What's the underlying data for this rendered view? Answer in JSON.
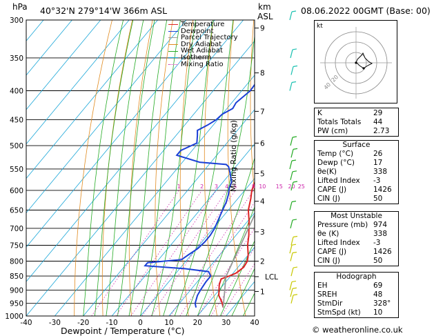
{
  "header": {
    "hpa_label": "hPa",
    "location": "40°32'N  279°14'W  366m  ASL",
    "km_label": "km",
    "asl_label": "ASL",
    "datetime": "08.06.2022  00GMT  (Base: 00)"
  },
  "footer": {
    "copyright": "© weatheronline.co.uk"
  },
  "mixing_ratio_axis_label": "Mixing Ratio  (g/kg)",
  "legend": [
    {
      "label": "Temperature",
      "color": "#dd2222"
    },
    {
      "label": "Dewpoint",
      "color": "#1a3fd6"
    },
    {
      "label": "Parcel Trajectory",
      "color": "#999999"
    },
    {
      "label": "Dry Adiabat",
      "color": "#e08a1e"
    },
    {
      "label": "Wet Adiabat",
      "color": "#22aa22"
    },
    {
      "label": "Isotherm",
      "color": "#19a6d8"
    },
    {
      "label": "Mixing Ratio",
      "color": "#cc22aa"
    }
  ],
  "indices": [
    {
      "label": "K",
      "value": "29"
    },
    {
      "label": "Totals Totals",
      "value": "44"
    },
    {
      "label": "PW (cm)",
      "value": "2.73"
    }
  ],
  "surface": {
    "title": "Surface",
    "rows": [
      {
        "label": "Temp (°C)",
        "value": "26"
      },
      {
        "label": "Dewp (°C)",
        "value": "17"
      },
      {
        "label": "θe(K)",
        "value": "338"
      },
      {
        "label": "Lifted Index",
        "value": "-3"
      },
      {
        "label": "CAPE (J)",
        "value": "1426"
      },
      {
        "label": "CIN (J)",
        "value": "50"
      }
    ]
  },
  "most_unstable": {
    "title": "Most Unstable",
    "rows": [
      {
        "label": "Pressure (mb)",
        "value": "974"
      },
      {
        "label": "θe (K)",
        "value": "338"
      },
      {
        "label": "Lifted Index",
        "value": "-3"
      },
      {
        "label": "CAPE (J)",
        "value": "1426"
      },
      {
        "label": "CIN (J)",
        "value": "50"
      }
    ]
  },
  "hodograph": {
    "title": "Hodograph",
    "rows": [
      {
        "label": "EH",
        "value": "69"
      },
      {
        "label": "SREH",
        "value": "48"
      },
      {
        "label": "StmDir",
        "value": "328°"
      },
      {
        "label": "StmSpd (kt)",
        "value": "10"
      }
    ]
  },
  "hodo_panel": {
    "unit_label": "kt",
    "ring_labels": [
      "20",
      "40"
    ]
  },
  "chart_data": {
    "type": "line",
    "title": "",
    "xlabel": "Dewpoint / Temperature (°C)",
    "ylabel": "hPa",
    "x_ticks": [
      -40,
      -30,
      -20,
      -10,
      0,
      10,
      20,
      30,
      40
    ],
    "p_ticks": [
      300,
      350,
      400,
      450,
      500,
      550,
      600,
      650,
      700,
      750,
      800,
      850,
      900,
      950,
      1000
    ],
    "xlim": [
      -40,
      40
    ],
    "plim": [
      300,
      1000
    ],
    "skew": true,
    "km_ticks": [
      {
        "label": "9",
        "p": 310
      },
      {
        "label": "8",
        "p": 372
      },
      {
        "label": "7",
        "p": 435
      },
      {
        "label": "6",
        "p": 495
      },
      {
        "label": "5",
        "p": 560
      },
      {
        "label": "4",
        "p": 627
      },
      {
        "label": "3",
        "p": 710
      },
      {
        "label": "2",
        "p": 800
      },
      {
        "label": "LCL",
        "p": 852
      },
      {
        "label": "1",
        "p": 905
      }
    ],
    "mixing_ratio_labels": [
      "1",
      "2",
      "3",
      "4",
      "5",
      "8",
      "10",
      "15",
      "20",
      "25"
    ],
    "series": [
      {
        "name": "Temperature",
        "color": "#dd2222",
        "points": [
          [
            966,
            26.5
          ],
          [
            945,
            24.5
          ],
          [
            920,
            21.5
          ],
          [
            900,
            20
          ],
          [
            880,
            18.5
          ],
          [
            860,
            17.5
          ],
          [
            850,
            19.5
          ],
          [
            840,
            21
          ],
          [
            820,
            22
          ],
          [
            800,
            21.5
          ],
          [
            780,
            20
          ],
          [
            750,
            17
          ],
          [
            720,
            14.5
          ],
          [
            700,
            12.5
          ],
          [
            680,
            10.5
          ],
          [
            650,
            7
          ],
          [
            620,
            4.5
          ],
          [
            600,
            2.5
          ],
          [
            570,
            0.5
          ],
          [
            550,
            -1.5
          ],
          [
            520,
            -3.5
          ],
          [
            500,
            -5.5
          ],
          [
            480,
            -7.5
          ],
          [
            450,
            -10.5
          ],
          [
            420,
            -14
          ],
          [
            400,
            -16.5
          ],
          [
            370,
            -20.5
          ],
          [
            350,
            -23.5
          ],
          [
            320,
            -28
          ],
          [
            310,
            -29.5
          ],
          [
            300,
            -31
          ]
        ]
      },
      {
        "name": "Dewpoint",
        "color": "#1a3fd6",
        "points": [
          [
            966,
            17
          ],
          [
            950,
            15.5
          ],
          [
            920,
            14
          ],
          [
            900,
            13.5
          ],
          [
            870,
            13
          ],
          [
            850,
            13
          ],
          [
            835,
            11
          ],
          [
            825,
            2
          ],
          [
            815,
            -13
          ],
          [
            805,
            -13
          ],
          [
            795,
            -2
          ],
          [
            780,
            -1
          ],
          [
            760,
            0.5
          ],
          [
            740,
            1
          ],
          [
            720,
            1
          ],
          [
            700,
            0.5
          ],
          [
            680,
            -0.5
          ],
          [
            650,
            -2
          ],
          [
            630,
            -3
          ],
          [
            610,
            -4.5
          ],
          [
            595,
            -6
          ],
          [
            580,
            -7
          ],
          [
            560,
            -10
          ],
          [
            545,
            -12.5
          ],
          [
            540,
            -14
          ],
          [
            535,
            -24
          ],
          [
            520,
            -34
          ],
          [
            510,
            -34
          ],
          [
            495,
            -30.5
          ],
          [
            480,
            -32.5
          ],
          [
            470,
            -34
          ],
          [
            460,
            -32
          ],
          [
            450,
            -30.5
          ],
          [
            440,
            -30
          ],
          [
            430,
            -28
          ],
          [
            420,
            -28.5
          ],
          [
            400,
            -27
          ],
          [
            380,
            -27.5
          ],
          [
            360,
            -27
          ],
          [
            340,
            -30.5
          ],
          [
            330,
            -31
          ],
          [
            320,
            -28
          ],
          [
            315,
            -27
          ],
          [
            305,
            -29.5
          ],
          [
            300,
            -29
          ]
        ]
      },
      {
        "name": "Parcel Trajectory",
        "color": "#999999",
        "points": [
          [
            966,
            26.5
          ],
          [
            900,
            22
          ],
          [
            852,
            18.5
          ],
          [
            800,
            16.5
          ],
          [
            750,
            14.5
          ],
          [
            700,
            12.3
          ],
          [
            650,
            10
          ],
          [
            600,
            7.5
          ],
          [
            550,
            4.5
          ],
          [
            500,
            1
          ],
          [
            450,
            -3.5
          ],
          [
            400,
            -9
          ],
          [
            350,
            -16
          ],
          [
            300,
            -24.5
          ]
        ]
      }
    ]
  }
}
